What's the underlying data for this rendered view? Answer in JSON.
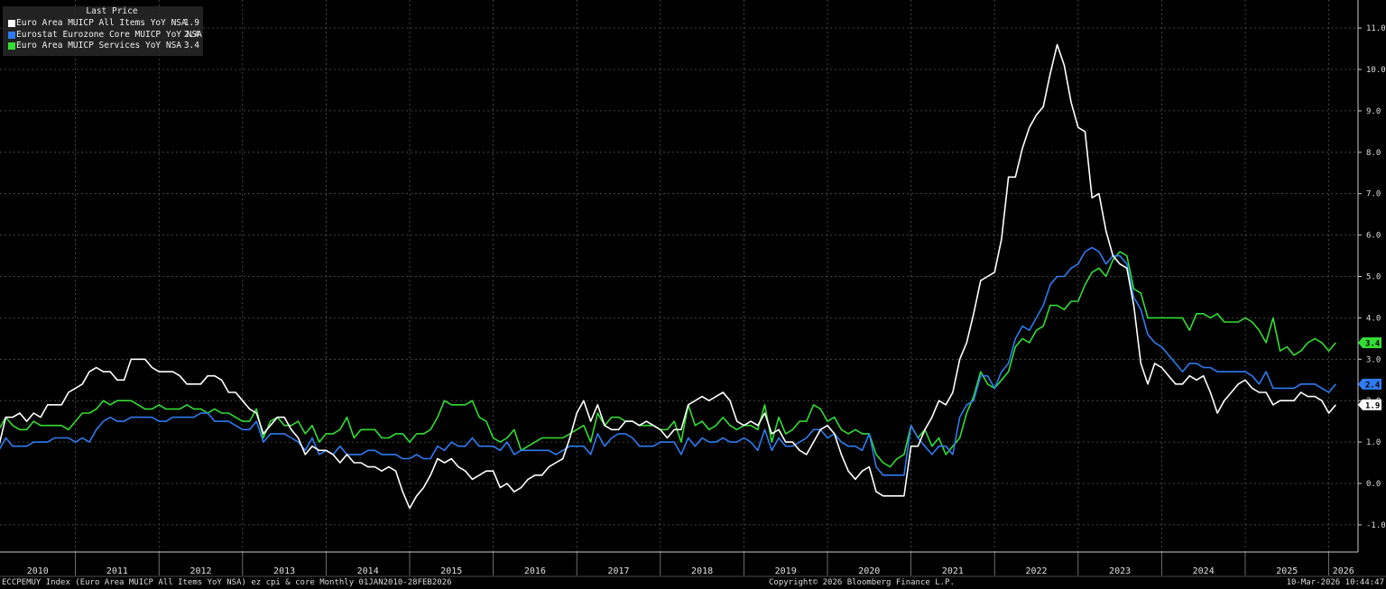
{
  "legend": {
    "title": "Last Price",
    "items": [
      {
        "name": "Euro Area MUICP All Items YoY NSA",
        "value": "1.9",
        "color": "#ffffff"
      },
      {
        "name": "Eurostat Eurozone Core MUICP YoY NSA",
        "value": "2.4",
        "color": "#2f7bf0"
      },
      {
        "name": "Euro Area MUICP Services YoY NSA",
        "value": "3.4",
        "color": "#33dd33"
      }
    ]
  },
  "footer": {
    "left": "ECCPEMUY Index (Euro Area MUICP All Items YoY NSA) ez cpi & core Monthly 01JAN2010-28FEB2026",
    "center": "Copyright© 2026 Bloomberg Finance L.P.",
    "right": "10-Mar-2026 10:44:47"
  },
  "chart_data": {
    "type": "line",
    "x_start": "2010-01",
    "x_end": "2026-02",
    "frequency": "monthly",
    "ylim": [
      -1.2,
      11.5
    ],
    "yticks": [
      -1.0,
      0.0,
      1.0,
      2.0,
      3.0,
      4.0,
      5.0,
      6.0,
      7.0,
      8.0,
      9.0,
      10.0,
      11.0
    ],
    "ytick_labels": [
      "-1.0",
      "0.0",
      "1.0",
      "2.0",
      "3.0",
      "4.0",
      "5.0",
      "6.0",
      "7.0",
      "8.0",
      "9.0",
      "10.0",
      "11.0"
    ],
    "x_tick_labels": [
      "2010",
      "2011",
      "2012",
      "2013",
      "2014",
      "2015",
      "2016",
      "2017",
      "2018",
      "2019",
      "2020",
      "2021",
      "2022",
      "2023",
      "2024",
      "2025",
      "2026"
    ],
    "grid": true,
    "legend_position": "top-left",
    "series": [
      {
        "name": "Euro Area MUICP All Items YoY NSA",
        "color": "#ffffff",
        "last": "1.9",
        "values": [
          1.0,
          0.9,
          1.6,
          1.6,
          1.7,
          1.5,
          1.7,
          1.6,
          1.9,
          1.9,
          1.9,
          2.2,
          2.3,
          2.4,
          2.7,
          2.8,
          2.7,
          2.7,
          2.5,
          2.5,
          3.0,
          3.0,
          3.0,
          2.8,
          2.7,
          2.7,
          2.7,
          2.6,
          2.4,
          2.4,
          2.4,
          2.6,
          2.6,
          2.5,
          2.2,
          2.2,
          2.0,
          1.8,
          1.7,
          1.2,
          1.4,
          1.6,
          1.6,
          1.3,
          1.1,
          0.7,
          0.9,
          0.8,
          0.8,
          0.7,
          0.5,
          0.7,
          0.5,
          0.5,
          0.4,
          0.4,
          0.3,
          0.4,
          0.3,
          -0.2,
          -0.6,
          -0.3,
          -0.1,
          0.2,
          0.6,
          0.5,
          0.6,
          0.4,
          0.3,
          0.1,
          0.2,
          0.3,
          0.3,
          -0.1,
          0.0,
          -0.2,
          -0.1,
          0.1,
          0.2,
          0.2,
          0.4,
          0.5,
          0.6,
          1.1,
          1.7,
          2.0,
          1.5,
          1.9,
          1.4,
          1.3,
          1.3,
          1.5,
          1.5,
          1.4,
          1.5,
          1.4,
          1.3,
          1.1,
          1.3,
          1.3,
          1.9,
          2.0,
          2.1,
          2.0,
          2.1,
          2.2,
          2.0,
          1.5,
          1.4,
          1.5,
          1.4,
          1.7,
          1.2,
          1.3,
          1.0,
          1.0,
          0.8,
          0.7,
          1.0,
          1.3,
          1.4,
          1.2,
          0.7,
          0.3,
          0.1,
          0.3,
          0.4,
          -0.2,
          -0.3,
          -0.3,
          -0.3,
          -0.3,
          0.9,
          0.9,
          1.3,
          1.6,
          2.0,
          1.9,
          2.2,
          3.0,
          3.4,
          4.1,
          4.9,
          5.0,
          5.1,
          5.9,
          7.4,
          7.4,
          8.1,
          8.6,
          8.9,
          9.1,
          9.9,
          10.6,
          10.1,
          9.2,
          8.6,
          8.5,
          6.9,
          7.0,
          6.1,
          5.5,
          5.3,
          5.2,
          4.3,
          2.9,
          2.4,
          2.9,
          2.8,
          2.6,
          2.4,
          2.4,
          2.6,
          2.5,
          2.6,
          2.2,
          1.7,
          2.0,
          2.2,
          2.4,
          2.5,
          2.3,
          2.2,
          2.2,
          1.9,
          2.0,
          2.0,
          2.0,
          2.2,
          2.1,
          2.1,
          2.0,
          1.7,
          1.9
        ]
      },
      {
        "name": "Eurostat Eurozone Core MUICP YoY NSA",
        "color": "#2f7bf0",
        "last": "2.4",
        "values": [
          0.9,
          0.8,
          1.1,
          0.9,
          0.9,
          0.9,
          1.0,
          1.0,
          1.0,
          1.1,
          1.1,
          1.1,
          1.0,
          1.1,
          1.0,
          1.3,
          1.5,
          1.6,
          1.5,
          1.5,
          1.6,
          1.6,
          1.6,
          1.6,
          1.5,
          1.5,
          1.6,
          1.6,
          1.6,
          1.6,
          1.7,
          1.7,
          1.5,
          1.5,
          1.5,
          1.4,
          1.3,
          1.3,
          1.5,
          1.0,
          1.2,
          1.2,
          1.2,
          1.1,
          1.0,
          0.8,
          1.1,
          0.7,
          0.8,
          0.7,
          0.9,
          0.7,
          0.7,
          0.7,
          0.8,
          0.8,
          0.7,
          0.7,
          0.7,
          0.6,
          0.6,
          0.7,
          0.6,
          0.6,
          0.9,
          0.8,
          1.0,
          0.9,
          0.9,
          1.1,
          0.9,
          0.9,
          0.9,
          0.8,
          1.0,
          0.7,
          0.8,
          0.8,
          0.8,
          0.8,
          0.8,
          0.7,
          0.8,
          0.9,
          0.9,
          0.9,
          0.7,
          1.2,
          0.9,
          1.1,
          1.2,
          1.2,
          1.1,
          0.9,
          0.9,
          0.9,
          1.0,
          1.0,
          1.0,
          0.7,
          1.1,
          0.9,
          1.1,
          1.0,
          1.0,
          1.1,
          1.0,
          1.0,
          1.1,
          1.0,
          0.8,
          1.3,
          0.8,
          1.1,
          0.9,
          0.9,
          1.0,
          1.1,
          1.3,
          1.3,
          1.1,
          1.2,
          1.0,
          0.9,
          0.9,
          0.8,
          1.2,
          0.4,
          0.2,
          0.2,
          0.2,
          0.2,
          1.4,
          1.1,
          0.9,
          0.7,
          0.9,
          0.9,
          0.7,
          1.6,
          1.9,
          2.0,
          2.6,
          2.6,
          2.3,
          2.7,
          2.9,
          3.5,
          3.8,
          3.7,
          4.0,
          4.3,
          4.8,
          5.0,
          5.0,
          5.2,
          5.3,
          5.6,
          5.7,
          5.6,
          5.3,
          5.5,
          5.5,
          5.3,
          4.5,
          4.2,
          3.6,
          3.4,
          3.3,
          3.1,
          2.9,
          2.7,
          2.9,
          2.9,
          2.8,
          2.8,
          2.7,
          2.7,
          2.7,
          2.7,
          2.7,
          2.6,
          2.4,
          2.7,
          2.3,
          2.3,
          2.3,
          2.3,
          2.4,
          2.4,
          2.4,
          2.3,
          2.2,
          2.4
        ]
      },
      {
        "name": "Euro Area MUICP Services YoY NSA",
        "color": "#33dd33",
        "last": "3.4",
        "values": [
          1.6,
          1.3,
          1.6,
          1.4,
          1.3,
          1.3,
          1.5,
          1.4,
          1.4,
          1.4,
          1.4,
          1.3,
          1.5,
          1.7,
          1.7,
          1.8,
          2.0,
          1.9,
          2.0,
          2.0,
          2.0,
          1.9,
          1.8,
          1.8,
          1.9,
          1.8,
          1.8,
          1.8,
          1.9,
          1.8,
          1.8,
          1.7,
          1.8,
          1.7,
          1.7,
          1.6,
          1.5,
          1.5,
          1.8,
          1.1,
          1.5,
          1.6,
          1.4,
          1.4,
          1.5,
          1.2,
          1.4,
          1.0,
          1.2,
          1.2,
          1.3,
          1.6,
          1.1,
          1.3,
          1.3,
          1.3,
          1.1,
          1.1,
          1.2,
          1.2,
          1.0,
          1.2,
          1.2,
          1.3,
          1.6,
          2.0,
          1.9,
          1.9,
          1.9,
          2.0,
          1.6,
          1.5,
          1.1,
          1.0,
          1.1,
          1.3,
          0.8,
          0.9,
          1.0,
          1.1,
          1.1,
          1.1,
          1.1,
          1.2,
          1.3,
          1.4,
          1.0,
          1.7,
          1.4,
          1.6,
          1.6,
          1.5,
          1.5,
          1.4,
          1.4,
          1.4,
          1.3,
          1.3,
          1.5,
          1.0,
          1.9,
          1.4,
          1.5,
          1.3,
          1.4,
          1.6,
          1.4,
          1.3,
          1.4,
          1.4,
          1.3,
          1.9,
          1.0,
          1.6,
          1.2,
          1.3,
          1.5,
          1.5,
          1.9,
          1.8,
          1.5,
          1.6,
          1.3,
          1.2,
          1.3,
          1.2,
          1.2,
          0.7,
          0.5,
          0.4,
          0.6,
          0.7,
          1.4,
          1.1,
          1.3,
          0.9,
          1.1,
          0.7,
          0.9,
          1.1,
          1.7,
          2.1,
          2.7,
          2.4,
          2.3,
          2.5,
          2.7,
          3.3,
          3.5,
          3.4,
          3.7,
          3.8,
          4.3,
          4.3,
          4.2,
          4.4,
          4.4,
          4.8,
          5.1,
          5.2,
          5.0,
          5.4,
          5.6,
          5.5,
          4.7,
          4.6,
          4.0,
          4.0,
          4.0,
          4.0,
          4.0,
          4.0,
          3.7,
          4.1,
          4.1,
          4.0,
          4.1,
          3.9,
          3.9,
          3.9,
          4.0,
          3.9,
          3.7,
          3.4,
          4.0,
          3.2,
          3.3,
          3.1,
          3.2,
          3.4,
          3.5,
          3.4,
          3.2,
          3.4
        ]
      }
    ]
  }
}
